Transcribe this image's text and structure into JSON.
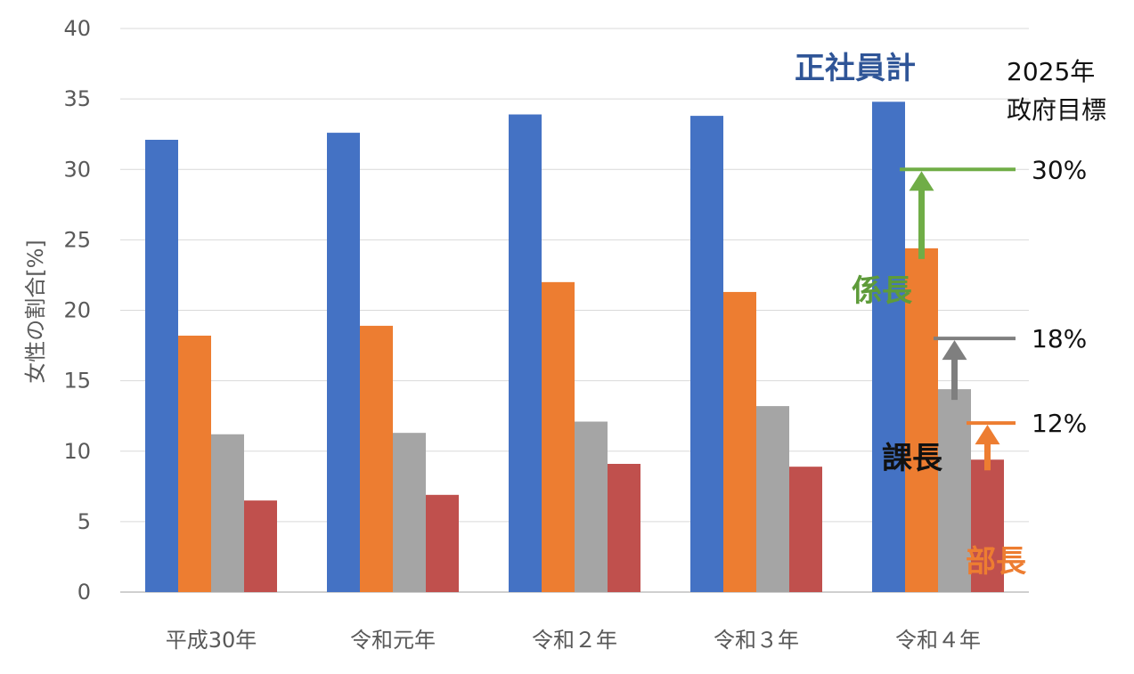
{
  "chart_data": {
    "type": "bar",
    "ylabel": "女性の割合[%]",
    "ylim": [
      0,
      40
    ],
    "yticks": [
      0,
      5,
      10,
      15,
      20,
      25,
      30,
      35,
      40
    ],
    "grid": true,
    "categories": [
      "平成30年",
      "令和元年",
      "令和２年",
      "令和３年",
      "令和４年"
    ],
    "series": [
      {
        "name": "正社員計",
        "color": "#4472C4",
        "values": [
          32.1,
          32.6,
          33.9,
          33.8,
          34.8
        ]
      },
      {
        "name": "係長",
        "color": "#ED7D31",
        "values": [
          18.2,
          18.9,
          22.0,
          21.3,
          24.4
        ]
      },
      {
        "name": "課長",
        "color": "#A5A5A5",
        "values": [
          11.2,
          11.3,
          12.1,
          13.2,
          14.4
        ]
      },
      {
        "name": "部長",
        "color": "#C0504D",
        "values": [
          6.5,
          6.9,
          9.1,
          8.9,
          9.4
        ]
      }
    ],
    "annotations": {
      "series_labels": {
        "total": "正社員計",
        "kakaricho": "係長",
        "kacho": "課長",
        "bucho": "部長"
      },
      "target_header": [
        "2025年",
        "政府目標"
      ],
      "targets": [
        {
          "series": "係長",
          "value": 30,
          "label": "30%",
          "color": "#70AD47"
        },
        {
          "series": "課長",
          "value": 18,
          "label": "18%",
          "color": "#7F7F7F"
        },
        {
          "series": "部長",
          "value": 12,
          "label": "12%",
          "color": "#ED7D31"
        }
      ]
    }
  }
}
